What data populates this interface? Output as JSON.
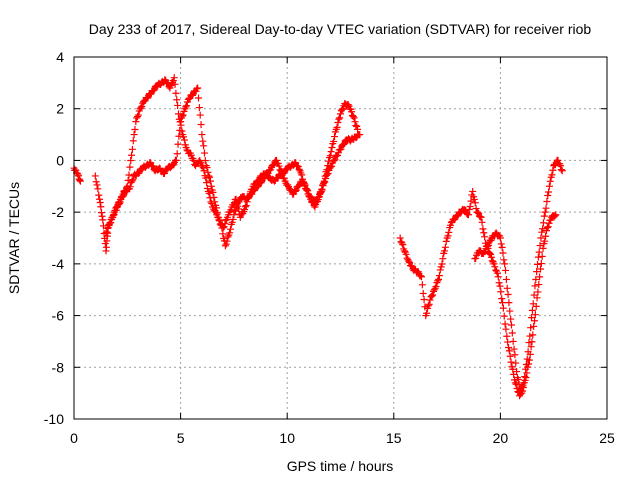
{
  "chart_data": {
    "type": "scatter",
    "title": "Day 233 of 2017, Sidereal Day-to-day VTEC variation (SDTVAR) for receiver riob",
    "xlabel": "GPS time / hours",
    "ylabel": "SDTVAR / TECUs",
    "xlim": [
      0,
      25
    ],
    "ylim": [
      -10,
      4
    ],
    "xticks": [
      0,
      5,
      10,
      15,
      20,
      25
    ],
    "yticks": [
      -10,
      -8,
      -6,
      -4,
      -2,
      0,
      2,
      4
    ],
    "xtick_labels": [
      "0",
      "5",
      "10",
      "15",
      "20",
      "25"
    ],
    "ytick_labels": [
      "-10",
      "-8",
      "-6",
      "-4",
      "-2",
      "0",
      "2",
      "4"
    ],
    "grid": true,
    "legend": "none",
    "marker": "plus",
    "color": "#ff0000",
    "series": [
      {
        "x": [
          0.0,
          0.15,
          0.3
        ],
        "y": [
          -0.3,
          -0.5,
          -0.8
        ]
      },
      {
        "x": [
          1.0,
          1.2,
          1.35,
          1.5,
          1.6,
          1.8,
          2.0,
          2.2,
          2.4,
          2.6,
          2.8,
          3.0,
          3.2,
          3.4,
          3.6,
          3.8,
          4.0,
          4.2,
          4.4,
          4.6,
          4.8,
          5.0,
          5.2,
          5.4,
          5.6,
          5.8,
          6.0,
          6.2,
          6.4,
          6.6,
          6.8,
          7.0,
          7.2,
          7.4,
          7.6,
          7.8,
          8.0,
          8.2,
          8.4,
          8.6,
          8.8,
          9.0,
          9.2,
          9.4,
          9.6,
          9.8,
          10.0,
          10.2,
          10.4,
          10.6,
          10.8,
          11.0,
          11.2,
          11.4,
          11.6,
          11.8,
          12.0,
          12.2,
          12.4,
          12.6,
          12.8,
          13.0,
          13.2,
          13.4
        ],
        "y": [
          -0.6,
          -1.5,
          -2.3,
          -3.5,
          -2.6,
          -2.2,
          -1.8,
          -1.5,
          -1.2,
          -1.1,
          -0.6,
          -0.5,
          -0.3,
          -0.2,
          -0.1,
          -0.4,
          -0.3,
          -0.5,
          -0.3,
          -0.2,
          0.0,
          1.5,
          2.0,
          2.4,
          2.6,
          2.8,
          1.0,
          -0.2,
          -0.8,
          -1.6,
          -2.3,
          -2.6,
          -2.2,
          -1.8,
          -1.5,
          -2.2,
          -1.9,
          -1.4,
          -1.0,
          -0.8,
          -0.6,
          -0.5,
          -0.7,
          -0.8,
          -0.6,
          -0.5,
          -0.3,
          -0.2,
          -0.1,
          -0.4,
          -0.9,
          -1.3,
          -1.6,
          -1.5,
          -1.2,
          -0.7,
          -0.3,
          0.0,
          0.3,
          0.6,
          0.8,
          0.8,
          0.9,
          1.0
        ]
      },
      {
        "x": [
          1.5,
          1.7,
          1.9,
          2.1,
          2.3,
          2.5,
          2.7,
          2.9,
          3.1,
          3.3,
          3.5,
          3.7,
          3.9,
          4.1,
          4.3,
          4.5,
          4.7,
          4.9,
          5.1,
          5.3,
          5.5,
          5.7,
          5.9,
          6.1,
          6.3,
          6.5,
          6.7,
          6.9,
          7.1,
          7.3,
          7.5,
          7.7,
          7.9,
          8.1,
          8.3,
          8.5,
          8.7,
          8.9,
          9.1,
          9.3,
          9.5,
          9.7,
          9.9,
          10.1,
          10.3,
          10.5,
          10.7,
          10.9,
          11.1,
          11.3,
          11.5,
          11.7,
          11.9,
          12.1,
          12.3,
          12.5,
          12.7,
          12.9,
          13.1,
          13.3
        ],
        "y": [
          -2.8,
          -2.4,
          -2.0,
          -1.7,
          -1.3,
          -1.0,
          0.2,
          1.5,
          2.0,
          2.3,
          2.5,
          2.7,
          2.9,
          3.0,
          3.1,
          2.8,
          3.2,
          1.8,
          1.0,
          0.4,
          0.2,
          -0.2,
          0.0,
          -0.4,
          -1.2,
          -1.8,
          -2.1,
          -2.5,
          -3.3,
          -2.8,
          -2.1,
          -1.6,
          -1.4,
          -1.5,
          -1.3,
          -1.1,
          -0.9,
          -0.7,
          -0.5,
          -0.2,
          0.0,
          -0.4,
          -0.8,
          -1.1,
          -1.3,
          -1.0,
          -0.8,
          -1.1,
          -1.5,
          -1.8,
          -1.4,
          -0.9,
          -0.2,
          0.5,
          1.2,
          1.8,
          2.2,
          2.1,
          1.7,
          1.2
        ]
      },
      {
        "x": [
          15.3,
          15.5,
          15.7,
          15.9,
          16.1,
          16.3,
          16.5,
          16.7,
          16.9,
          17.1,
          17.3,
          17.5,
          17.7,
          17.9,
          18.1,
          18.3,
          18.5,
          18.7,
          18.9,
          19.1,
          19.3,
          19.5,
          19.7,
          19.9,
          20.1,
          20.3,
          20.5,
          20.7,
          20.9,
          21.1,
          21.3,
          21.5,
          21.7,
          21.9,
          22.1,
          22.3,
          22.5,
          22.7,
          22.9
        ],
        "y": [
          -3.0,
          -3.5,
          -3.9,
          -4.2,
          -4.3,
          -4.5,
          -6.0,
          -5.4,
          -5.0,
          -4.6,
          -3.8,
          -3.0,
          -2.4,
          -2.2,
          -2.0,
          -1.9,
          -2.1,
          -1.2,
          -2.0,
          -2.2,
          -3.2,
          -3.6,
          -4.0,
          -4.5,
          -5.5,
          -6.8,
          -7.8,
          -8.6,
          -9.1,
          -8.6,
          -7.4,
          -5.8,
          -4.3,
          -3.0,
          -2.0,
          -1.0,
          -0.2,
          0.0,
          -0.4
        ]
      },
      {
        "x": [
          18.8,
          19.0,
          19.2,
          19.4,
          19.6,
          19.8,
          20.0,
          20.2,
          20.4,
          20.6,
          20.8,
          21.0,
          21.2,
          21.4,
          21.6,
          21.8,
          22.0,
          22.2,
          22.4,
          22.6
        ],
        "y": [
          -3.8,
          -3.5,
          -3.6,
          -3.3,
          -3.0,
          -2.8,
          -3.0,
          -4.0,
          -5.5,
          -7.0,
          -8.4,
          -9.0,
          -8.4,
          -7.5,
          -6.2,
          -4.8,
          -3.4,
          -2.6,
          -2.2,
          -2.1
        ]
      }
    ]
  }
}
